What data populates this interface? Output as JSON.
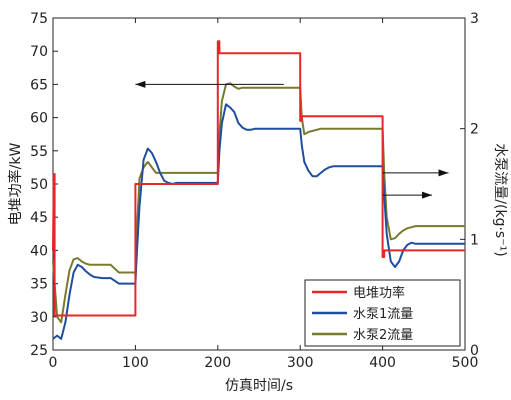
{
  "chart_data": {
    "type": "line",
    "xlabel": "仿真时间/s",
    "ylabel_left": "电堆功率/kW",
    "ylabel_right": "水泵流量/(kg·s⁻¹)",
    "xlim": [
      0,
      500
    ],
    "ylim_left": [
      25,
      75
    ],
    "ylim_right": [
      0,
      3
    ],
    "x_ticks": [
      0,
      100,
      200,
      300,
      400,
      500
    ],
    "y_left_ticks": [
      25,
      30,
      35,
      40,
      45,
      50,
      55,
      60,
      65,
      70,
      75
    ],
    "y_right_ticks": [
      0,
      1,
      2,
      3
    ],
    "grid": false,
    "legend_position": "bottom-right",
    "series": [
      {
        "name": "电堆功率",
        "axis": "left",
        "color": "#e8262a",
        "x": [
          0,
          1,
          2,
          2,
          3,
          100,
          100,
          100.5,
          102,
          102,
          200,
          200,
          200.5,
          202,
          202,
          300,
          300,
          300.5,
          302,
          302,
          400,
          400,
          400.5,
          402,
          402,
          500
        ],
        "y": [
          40,
          51.5,
          51.5,
          30.2,
          30.2,
          30.2,
          50,
          50,
          50,
          50,
          50,
          71.5,
          71.5,
          71.5,
          69.7,
          69.7,
          59.5,
          59.5,
          59.5,
          60.2,
          60.2,
          39,
          39,
          39,
          40,
          40
        ]
      },
      {
        "name": "水泵1流量",
        "axis": "right",
        "color": "#1f4e9e",
        "x": [
          0,
          5,
          10,
          15,
          20,
          25,
          30,
          35,
          40,
          45,
          50,
          60,
          70,
          80,
          90,
          100,
          102,
          105,
          110,
          115,
          120,
          125,
          130,
          135,
          140,
          145,
          150,
          160,
          170,
          180,
          190,
          200,
          202,
          205,
          210,
          215,
          220,
          225,
          230,
          235,
          240,
          245,
          250,
          260,
          270,
          280,
          290,
          300,
          302,
          305,
          310,
          315,
          320,
          325,
          330,
          335,
          340,
          345,
          350,
          360,
          370,
          380,
          390,
          400,
          402,
          405,
          410,
          415,
          420,
          425,
          430,
          435,
          440,
          445,
          450,
          460,
          470,
          480,
          490,
          500
        ],
        "y": [
          0.1,
          0.13,
          0.1,
          0.25,
          0.5,
          0.7,
          0.77,
          0.75,
          0.71,
          0.68,
          0.66,
          0.65,
          0.65,
          0.6,
          0.6,
          0.6,
          0.9,
          1.3,
          1.72,
          1.82,
          1.78,
          1.7,
          1.6,
          1.53,
          1.51,
          1.5,
          1.51,
          1.51,
          1.51,
          1.51,
          1.51,
          1.51,
          1.8,
          2.05,
          2.22,
          2.19,
          2.15,
          2.05,
          2.01,
          1.99,
          1.99,
          2.0,
          2.0,
          2.0,
          2.0,
          2.0,
          2.0,
          2.0,
          1.85,
          1.7,
          1.62,
          1.57,
          1.57,
          1.6,
          1.63,
          1.65,
          1.66,
          1.66,
          1.66,
          1.66,
          1.66,
          1.66,
          1.66,
          1.66,
          1.4,
          1.05,
          0.8,
          0.75,
          0.8,
          0.9,
          0.95,
          0.97,
          0.96,
          0.96,
          0.96,
          0.96,
          0.96,
          0.96,
          0.96,
          0.96
        ]
      },
      {
        "name": "水泵2流量",
        "axis": "right",
        "color": "#7a7a2e",
        "x": [
          0,
          5,
          10,
          15,
          20,
          25,
          30,
          35,
          40,
          45,
          50,
          60,
          70,
          80,
          90,
          100,
          102,
          105,
          110,
          115,
          120,
          125,
          130,
          135,
          140,
          145,
          150,
          160,
          170,
          180,
          190,
          200,
          202,
          205,
          210,
          215,
          220,
          225,
          230,
          235,
          240,
          245,
          250,
          260,
          270,
          280,
          290,
          300,
          302,
          305,
          310,
          315,
          320,
          325,
          330,
          335,
          340,
          345,
          350,
          360,
          370,
          380,
          390,
          400,
          402,
          405,
          410,
          415,
          420,
          425,
          430,
          435,
          440,
          445,
          450,
          460,
          470,
          480,
          490,
          500
        ],
        "y": [
          0.8,
          0.3,
          0.25,
          0.5,
          0.72,
          0.82,
          0.83,
          0.8,
          0.78,
          0.77,
          0.77,
          0.77,
          0.77,
          0.7,
          0.7,
          0.7,
          1.1,
          1.55,
          1.65,
          1.7,
          1.65,
          1.6,
          1.6,
          1.6,
          1.6,
          1.6,
          1.6,
          1.6,
          1.6,
          1.6,
          1.6,
          1.6,
          1.95,
          2.25,
          2.4,
          2.41,
          2.38,
          2.36,
          2.37,
          2.37,
          2.37,
          2.37,
          2.37,
          2.37,
          2.37,
          2.37,
          2.37,
          2.37,
          2.1,
          1.95,
          1.97,
          1.98,
          1.99,
          2.0,
          2.0,
          2.0,
          2.0,
          2.0,
          2.0,
          2.0,
          2.0,
          2.0,
          2.0,
          2.0,
          1.6,
          1.2,
          1.0,
          1.01,
          1.05,
          1.08,
          1.1,
          1.11,
          1.12,
          1.12,
          1.12,
          1.12,
          1.12,
          1.12,
          1.12,
          1.12
        ]
      }
    ],
    "annotations": [
      {
        "type": "arrow",
        "direction": "left",
        "from": [
          280,
          2.4
        ],
        "to": [
          100,
          2.4
        ],
        "axis": "right"
      },
      {
        "type": "arrow",
        "direction": "right",
        "from": [
          400,
          1.6
        ],
        "to": [
          480,
          1.6
        ],
        "axis": "right"
      },
      {
        "type": "arrow",
        "direction": "right",
        "from": [
          400,
          1.4
        ],
        "to": [
          460,
          1.4
        ],
        "axis": "right"
      }
    ]
  }
}
